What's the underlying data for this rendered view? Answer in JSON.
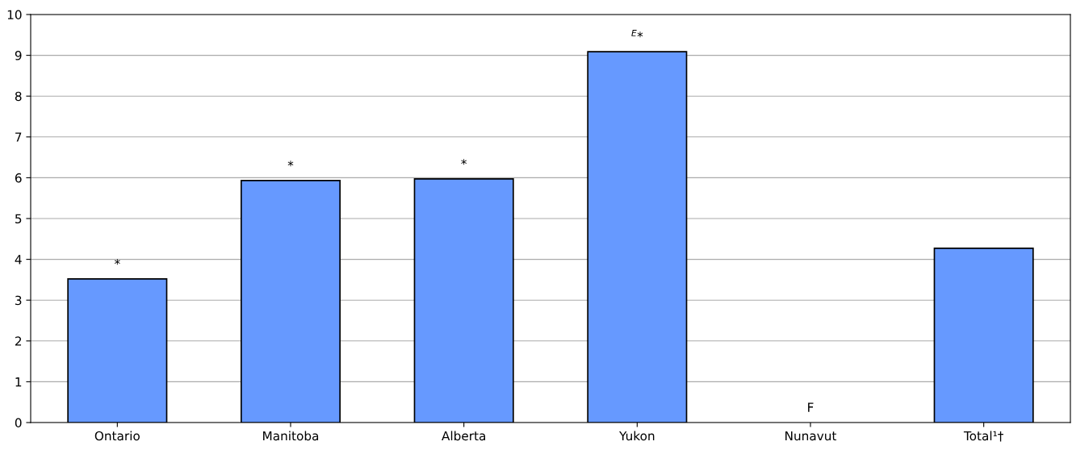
{
  "chart_data": {
    "type": "bar",
    "categories": [
      "Ontario",
      "Manitoba",
      "Alberta",
      "Yukon",
      "Nunavut",
      "Total¹†"
    ],
    "values": [
      3.52,
      5.93,
      5.97,
      9.09,
      null,
      4.27
    ],
    "value_labels": [
      "*",
      "*",
      "*",
      "$^{E}$*",
      "F",
      null
    ],
    "color": "#6699ff",
    "ylim": [
      0,
      10
    ],
    "yticks": [
      0,
      1,
      2,
      3,
      4,
      5,
      6,
      7,
      8,
      9,
      10
    ],
    "grid": "y",
    "legend": false
  }
}
